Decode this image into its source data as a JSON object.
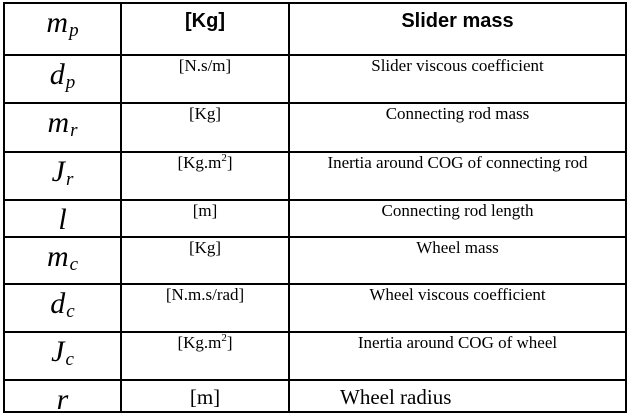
{
  "rows": [
    {
      "base": "m",
      "sub": "p",
      "unit": "[Kg]",
      "sup": "",
      "unit_tail": "",
      "desc": "Slider mass"
    },
    {
      "base": "d",
      "sub": "p",
      "unit": "[N.s/m]",
      "sup": "",
      "unit_tail": "",
      "desc": "Slider viscous coefficient"
    },
    {
      "base": "m",
      "sub": "r",
      "unit": "[Kg]",
      "sup": "",
      "unit_tail": "",
      "desc": "Connecting rod mass"
    },
    {
      "base": "J",
      "sub": "r",
      "unit": "[Kg.m",
      "sup": "2",
      "unit_tail": "]",
      "desc": "Inertia around COG of connecting rod"
    },
    {
      "base": "l",
      "sub": "",
      "unit": "[m]",
      "sup": "",
      "unit_tail": "",
      "desc": "Connecting rod length"
    },
    {
      "base": "m",
      "sub": "c",
      "unit": "[Kg]",
      "sup": "",
      "unit_tail": "",
      "desc": "Wheel mass"
    },
    {
      "base": "d",
      "sub": "c",
      "unit": "[N.m.s/rad]",
      "sup": "",
      "unit_tail": "",
      "desc": "Wheel viscous coefficient"
    },
    {
      "base": "J",
      "sub": "c",
      "unit": "[Kg.m",
      "sup": "2",
      "unit_tail": "]",
      "desc": "Inertia around COG of wheel"
    },
    {
      "base": "r",
      "sub": "",
      "unit": "[m]",
      "sup": "",
      "unit_tail": "",
      "desc": "Wheel radius"
    }
  ]
}
